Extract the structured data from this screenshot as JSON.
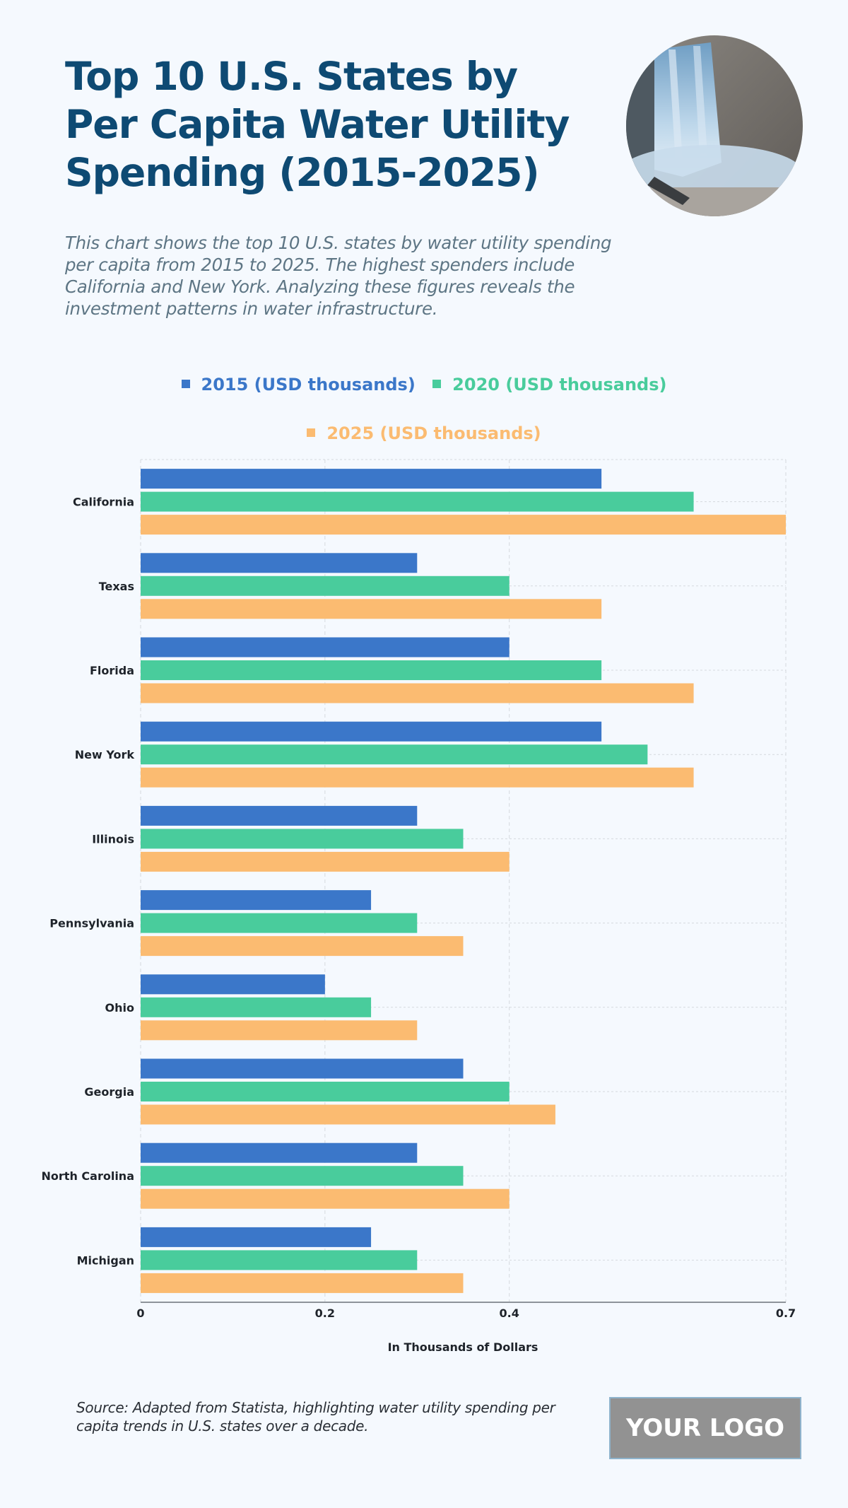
{
  "header": {
    "title_lines": [
      "Top 10 U.S. States by",
      "Per Capita Water Utility",
      "Spending (2015-2025)"
    ],
    "description": "This chart shows the top 10 U.S. states by water utility spending per capita from 2015 to 2025. The highest spenders include California and New York. Analyzing these figures reveals the investment patterns in water infrastructure.",
    "photo_icon": "waterfall-photo"
  },
  "footer": {
    "source": "Source: Adapted from Statista, highlighting water utility spending per capita trends in U.S. states over a decade.",
    "logo": "YOUR LOGO"
  },
  "chart_data": {
    "type": "bar",
    "orientation": "horizontal",
    "title": "Top 10 U.S. States by Per Capita Water Utility Spending (2015-2025)",
    "xlabel": "In Thousands of Dollars",
    "ylabel": "",
    "xlim": [
      0,
      0.7
    ],
    "xticks": [
      0,
      0.2,
      0.4,
      0.7
    ],
    "xtick_labels": [
      "0",
      "0.2",
      "0.4",
      "0.7"
    ],
    "grid": true,
    "legend_position": "top-center",
    "categories": [
      "California",
      "Texas",
      "Florida",
      "New York",
      "Illinois",
      "Pennsylvania",
      "Ohio",
      "Georgia",
      "North Carolina",
      "Michigan"
    ],
    "series": [
      {
        "name": "2015 (USD thousands)",
        "color": "#3b77c9",
        "values": [
          0.5,
          0.3,
          0.4,
          0.5,
          0.3,
          0.25,
          0.2,
          0.35,
          0.3,
          0.25
        ]
      },
      {
        "name": "2020 (USD thousands)",
        "color": "#49cc9c",
        "values": [
          0.6,
          0.4,
          0.5,
          0.55,
          0.35,
          0.3,
          0.25,
          0.4,
          0.35,
          0.3
        ]
      },
      {
        "name": "2025 (USD thousands)",
        "color": "#fbbb71",
        "values": [
          0.7,
          0.5,
          0.6,
          0.6,
          0.4,
          0.35,
          0.3,
          0.45,
          0.4,
          0.35
        ]
      }
    ]
  }
}
